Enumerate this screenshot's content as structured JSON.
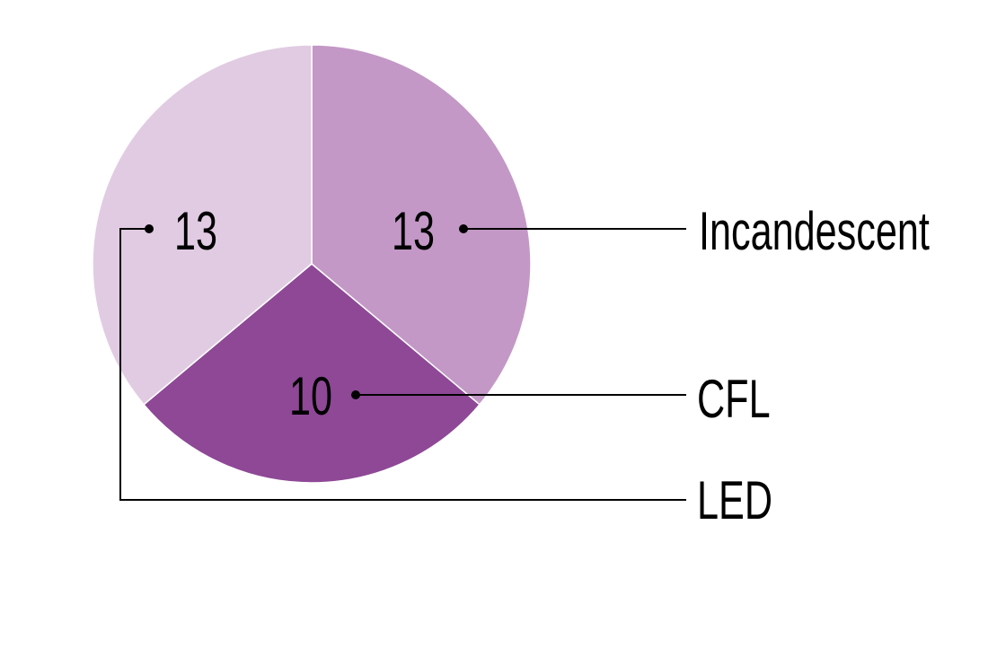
{
  "chart_data": {
    "type": "pie",
    "categories": [
      "Incandescent",
      "CFL",
      "LED"
    ],
    "values": [
      13,
      10,
      13
    ],
    "colors": [
      "#c398c6",
      "#8e4896",
      "#e1cbe2"
    ],
    "title": "",
    "legend_placement": "right, with leader lines"
  }
}
